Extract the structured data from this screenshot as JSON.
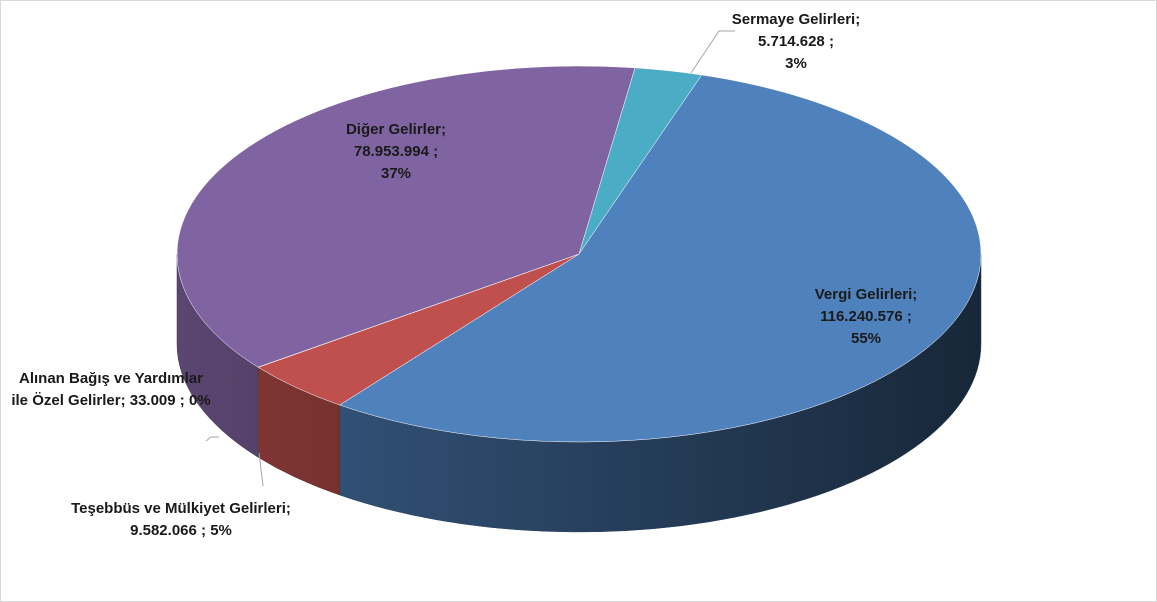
{
  "chart_data": {
    "type": "pie3d",
    "categories": [
      "Sermaye Gelirleri;",
      "Vergi Gelirleri;",
      "Teşebbüs ve Mülkiyet Gelirleri;",
      "Alınan Bağış ve Yardımlar ile Özel Gelirler;",
      "Diğer Gelirler;"
    ],
    "values": [
      5714628,
      116240576,
      9582066,
      33009,
      78953994
    ],
    "value_labels": [
      "5.714.628 ;",
      "116.240.576 ;",
      "9.582.066 ;",
      "33.009 ;",
      "78.953.994 ;"
    ],
    "percents": [
      3,
      55,
      5,
      0,
      37
    ],
    "percent_labels": [
      "3%",
      "55%",
      "5%",
      "0%",
      "37%"
    ],
    "colors": [
      "#4bacc6",
      "#4f81bd",
      "#c0504d",
      "#9bbb59",
      "#8064a2"
    ]
  }
}
